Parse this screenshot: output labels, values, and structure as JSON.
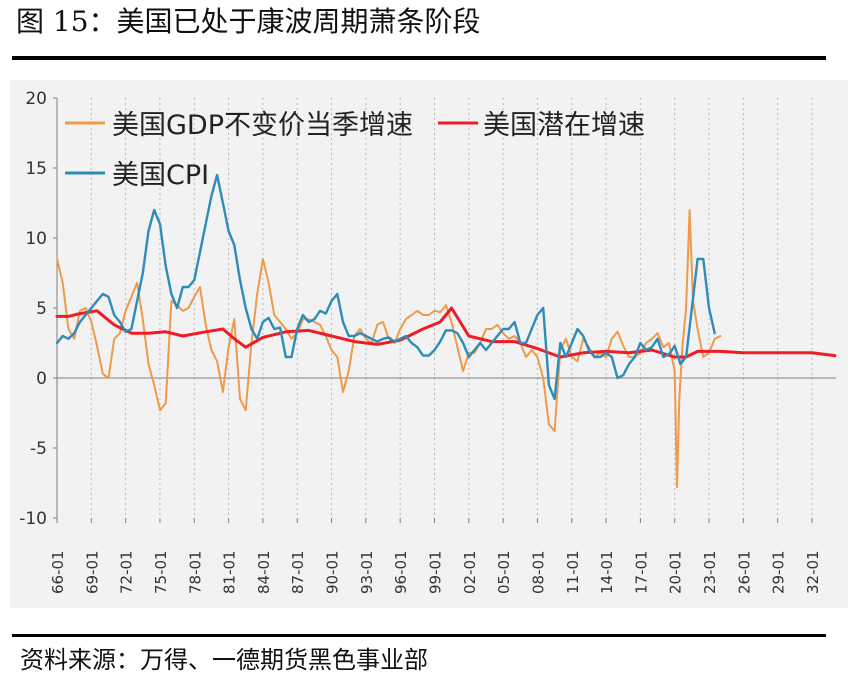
{
  "figure": {
    "title": "图 15：美国已处于康波周期萧条阶段",
    "source": "资料来源：万得、一德期货黑色事业部"
  },
  "chart_data": {
    "type": "line",
    "title": "",
    "xlabel": "",
    "ylabel": "",
    "ylim": [
      -10,
      20
    ],
    "yticks": [
      "20",
      "15",
      "10",
      "5",
      "0",
      "-5",
      "-10"
    ],
    "xticks": [
      "66-01",
      "69-01",
      "72-01",
      "75-01",
      "78-01",
      "81-01",
      "84-01",
      "87-01",
      "90-01",
      "93-01",
      "96-01",
      "99-01",
      "02-01",
      "05-01",
      "08-01",
      "11-01",
      "14-01",
      "17-01",
      "20-01",
      "23-01",
      "26-01",
      "29-01",
      "32-01"
    ],
    "xlim": [
      1966.0,
      2034.1
    ],
    "grid": "vertical-dotted",
    "legend_placement": "top-left",
    "series": [
      {
        "name": "美国GDP不变价当季增速",
        "color": "#ed9a4a",
        "x": [
          1966.0,
          1966.5,
          1967.0,
          1967.5,
          1968.0,
          1968.5,
          1969.0,
          1969.5,
          1970.0,
          1970.5,
          1971.0,
          1971.5,
          1972.0,
          1972.5,
          1973.0,
          1973.5,
          1974.0,
          1974.5,
          1975.0,
          1975.5,
          1976.0,
          1976.5,
          1977.0,
          1977.5,
          1978.0,
          1978.5,
          1979.0,
          1979.5,
          1980.0,
          1980.5,
          1981.0,
          1981.5,
          1982.0,
          1982.5,
          1983.0,
          1983.5,
          1984.0,
          1984.5,
          1985.0,
          1985.5,
          1986.0,
          1986.5,
          1987.0,
          1987.5,
          1988.0,
          1988.5,
          1989.0,
          1989.5,
          1990.0,
          1990.5,
          1991.0,
          1991.5,
          1992.0,
          1992.5,
          1993.0,
          1993.5,
          1994.0,
          1994.5,
          1995.0,
          1995.5,
          1996.0,
          1996.5,
          1997.0,
          1997.5,
          1998.0,
          1998.5,
          1999.0,
          1999.5,
          2000.0,
          2000.5,
          2001.0,
          2001.5,
          2002.0,
          2002.5,
          2003.0,
          2003.5,
          2004.0,
          2004.5,
          2005.0,
          2005.5,
          2006.0,
          2006.5,
          2007.0,
          2007.5,
          2008.0,
          2008.5,
          2009.0,
          2009.5,
          2010.0,
          2010.5,
          2011.0,
          2011.5,
          2012.0,
          2012.5,
          2013.0,
          2013.5,
          2014.0,
          2014.5,
          2015.0,
          2015.5,
          2016.0,
          2016.5,
          2017.0,
          2017.5,
          2018.0,
          2018.5,
          2019.0,
          2019.5,
          2020.0,
          2020.2,
          2020.4,
          2020.7,
          2021.0,
          2021.3,
          2021.6,
          2022.0,
          2022.5,
          2023.0,
          2023.5,
          2024.0
        ],
        "values": [
          8.5,
          6.8,
          3.5,
          2.8,
          4.8,
          5.0,
          4.0,
          2.3,
          0.3,
          0.0,
          2.8,
          3.2,
          4.8,
          5.8,
          6.8,
          4.2,
          1.0,
          -0.5,
          -2.3,
          -1.8,
          5.5,
          5.2,
          4.8,
          5.0,
          5.8,
          6.5,
          3.8,
          2.0,
          1.2,
          -1.0,
          2.2,
          4.2,
          -1.5,
          -2.3,
          2.5,
          6.0,
          8.5,
          6.8,
          4.5,
          4.0,
          3.5,
          2.8,
          3.2,
          4.2,
          4.2,
          4.0,
          3.8,
          3.0,
          2.0,
          1.5,
          -1.0,
          0.5,
          3.0,
          3.5,
          2.8,
          2.5,
          3.8,
          4.0,
          2.8,
          2.5,
          3.5,
          4.2,
          4.5,
          4.8,
          4.5,
          4.5,
          4.8,
          4.7,
          5.2,
          4.0,
          2.2,
          0.5,
          1.8,
          1.8,
          2.5,
          3.5,
          3.5,
          3.8,
          3.2,
          2.8,
          3.0,
          2.5,
          1.5,
          2.0,
          1.5,
          0.0,
          -3.3,
          -3.8,
          2.0,
          2.8,
          1.5,
          1.2,
          2.8,
          2.2,
          1.5,
          1.8,
          1.5,
          2.8,
          3.3,
          2.3,
          1.5,
          1.5,
          1.8,
          2.5,
          2.8,
          3.2,
          2.2,
          2.5,
          0.5,
          -7.8,
          -1.5,
          2.5,
          5.0,
          12.0,
          5.5,
          3.5,
          1.5,
          1.8,
          2.8,
          3.0
        ]
      },
      {
        "name": "美国潜在增速",
        "color": "#ee1c25",
        "x": [
          1966.0,
          1967.0,
          1968.0,
          1969.5,
          1971.0,
          1972.5,
          1974.0,
          1975.5,
          1977.0,
          1979.0,
          1980.5,
          1981.5,
          1982.5,
          1984.0,
          1986.0,
          1988.0,
          1990.0,
          1992.0,
          1994.0,
          1996.0,
          1998.0,
          1999.5,
          2000.5,
          2002.0,
          2004.0,
          2006.0,
          2008.0,
          2010.0,
          2012.0,
          2014.0,
          2016.0,
          2018.0,
          2020.0,
          2021.0,
          2022.0,
          2024.0,
          2026.0,
          2028.0,
          2030.0,
          2032.0,
          2034.0
        ],
        "values": [
          4.4,
          4.4,
          4.6,
          4.8,
          3.8,
          3.2,
          3.2,
          3.3,
          3.0,
          3.3,
          3.5,
          2.8,
          2.2,
          2.9,
          3.3,
          3.4,
          3.0,
          2.6,
          2.4,
          2.7,
          3.5,
          4.0,
          5.0,
          3.0,
          2.6,
          2.6,
          2.1,
          1.5,
          1.8,
          1.9,
          1.8,
          2.0,
          1.5,
          1.5,
          1.9,
          1.9,
          1.8,
          1.8,
          1.8,
          1.8,
          1.6
        ]
      },
      {
        "name": "美国CPI",
        "color": "#2f8cb9",
        "x": [
          1966.0,
          1966.5,
          1967.0,
          1967.5,
          1968.0,
          1968.5,
          1969.0,
          1969.5,
          1970.0,
          1970.5,
          1971.0,
          1971.5,
          1972.0,
          1972.5,
          1973.0,
          1973.5,
          1974.0,
          1974.5,
          1975.0,
          1975.5,
          1976.0,
          1976.5,
          1977.0,
          1977.5,
          1978.0,
          1978.5,
          1979.0,
          1979.5,
          1980.0,
          1980.5,
          1981.0,
          1981.5,
          1982.0,
          1982.5,
          1983.0,
          1983.5,
          1984.0,
          1984.5,
          1985.0,
          1985.5,
          1986.0,
          1986.5,
          1987.0,
          1987.5,
          1988.0,
          1988.5,
          1989.0,
          1989.5,
          1990.0,
          1990.5,
          1991.0,
          1991.5,
          1992.0,
          1992.5,
          1993.0,
          1993.5,
          1994.0,
          1994.5,
          1995.0,
          1995.5,
          1996.0,
          1996.5,
          1997.0,
          1997.5,
          1998.0,
          1998.5,
          1999.0,
          1999.5,
          2000.0,
          2000.5,
          2001.0,
          2001.5,
          2002.0,
          2002.5,
          2003.0,
          2003.5,
          2004.0,
          2004.5,
          2005.0,
          2005.5,
          2006.0,
          2006.5,
          2007.0,
          2007.5,
          2008.0,
          2008.5,
          2009.0,
          2009.5,
          2010.0,
          2010.5,
          2011.0,
          2011.5,
          2012.0,
          2012.5,
          2013.0,
          2013.5,
          2014.0,
          2014.5,
          2015.0,
          2015.5,
          2016.0,
          2016.5,
          2017.0,
          2017.5,
          2018.0,
          2018.5,
          2019.0,
          2019.5,
          2020.0,
          2020.5,
          2021.0,
          2021.5,
          2022.0,
          2022.5,
          2023.0,
          2023.5
        ],
        "values": [
          2.5,
          3.0,
          2.8,
          3.2,
          4.0,
          4.5,
          5.0,
          5.5,
          6.0,
          5.8,
          4.5,
          4.0,
          3.3,
          3.5,
          5.5,
          7.5,
          10.5,
          12.0,
          11.0,
          8.0,
          6.0,
          5.0,
          6.5,
          6.5,
          7.0,
          9.0,
          11.0,
          13.0,
          14.5,
          12.5,
          10.5,
          9.5,
          7.0,
          5.0,
          3.5,
          2.8,
          4.0,
          4.3,
          3.5,
          3.6,
          1.5,
          1.5,
          3.5,
          4.5,
          4.0,
          4.2,
          4.8,
          4.6,
          5.5,
          6.0,
          4.0,
          3.0,
          3.0,
          3.2,
          3.0,
          2.8,
          2.6,
          2.8,
          2.9,
          2.6,
          2.8,
          3.0,
          2.5,
          2.2,
          1.6,
          1.6,
          2.0,
          2.6,
          3.4,
          3.4,
          3.2,
          2.5,
          1.5,
          2.0,
          2.5,
          2.0,
          2.5,
          3.0,
          3.5,
          3.5,
          4.0,
          2.5,
          2.5,
          3.5,
          4.5,
          5.0,
          -0.5,
          -1.5,
          2.5,
          1.5,
          2.5,
          3.5,
          3.0,
          2.0,
          1.5,
          1.5,
          1.8,
          1.5,
          0.0,
          0.2,
          1.0,
          1.5,
          2.5,
          2.0,
          2.2,
          2.8,
          1.5,
          1.7,
          2.3,
          1.0,
          1.5,
          5.0,
          8.5,
          8.5,
          5.0,
          3.2
        ]
      }
    ]
  }
}
